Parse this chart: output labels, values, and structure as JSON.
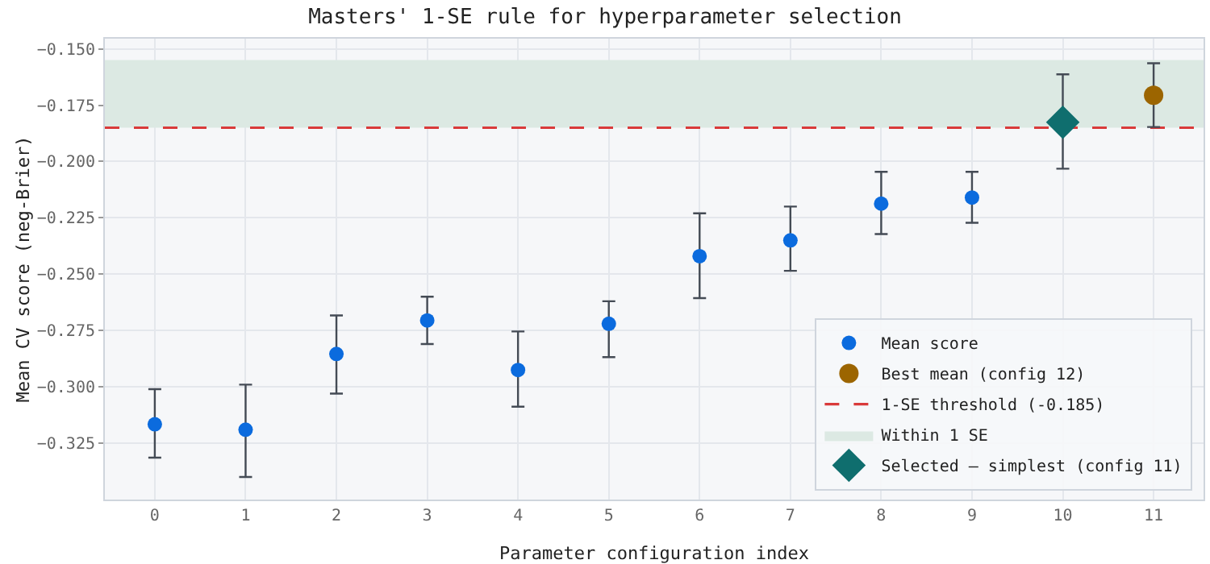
{
  "chart_data": {
    "type": "scatter",
    "title": "Masters' 1-SE rule for hyperparameter selection",
    "xlabel": "Parameter configuration index",
    "ylabel": "Mean CV score (neg-Brier)",
    "xlim": [
      -0.55,
      11.55
    ],
    "xticks": [
      0,
      1,
      2,
      3,
      4,
      5,
      6,
      7,
      8,
      9,
      10,
      11
    ],
    "ylim": [
      -0.35,
      -0.1455
    ],
    "yticks": [
      {
        "value": -0.15,
        "label": "−0.150"
      },
      {
        "value": -0.175,
        "label": "−0.175"
      },
      {
        "value": -0.2,
        "label": "−0.200"
      },
      {
        "value": -0.225,
        "label": "−0.225"
      },
      {
        "value": -0.25,
        "label": "−0.250"
      },
      {
        "value": -0.275,
        "label": "−0.275"
      },
      {
        "value": -0.3,
        "label": "−0.300"
      },
      {
        "value": -0.325,
        "label": "−0.325"
      }
    ],
    "grid": true,
    "legend": "bottom right",
    "series": [
      {
        "name": "Mean score",
        "color": "#0b6bde",
        "marker": "circle",
        "x": [
          0,
          1,
          2,
          3,
          4,
          5,
          6,
          7,
          8,
          9
        ],
        "values": [
          -0.3166,
          -0.319,
          -0.2854,
          -0.2705,
          -0.2925,
          -0.272,
          -0.242,
          -0.235,
          -0.2187,
          -0.216
        ],
        "errors": [
          [
            -0.3314,
            -0.301
          ],
          [
            -0.34,
            -0.299
          ],
          [
            -0.303,
            -0.2683
          ],
          [
            -0.281,
            -0.26
          ],
          [
            -0.3088,
            -0.2754
          ],
          [
            -0.2868,
            -0.262
          ],
          [
            -0.2606,
            -0.223
          ],
          [
            -0.2485,
            -0.22
          ],
          [
            -0.2322,
            -0.2046
          ],
          [
            -0.2272,
            -0.2046
          ]
        ]
      },
      {
        "name": "Best mean (config 12)",
        "color": "#9c6500",
        "marker": "circle",
        "x": [
          11
        ],
        "values": [
          -0.1706
        ],
        "errors": [
          [
            -0.1847,
            -0.1564
          ]
        ]
      },
      {
        "name": "Selected — simplest (config 11)",
        "color": "#0f6e6e",
        "marker": "diamond",
        "x": [
          10
        ],
        "values": [
          -0.1826
        ],
        "errors": [
          [
            -0.2032,
            -0.1613
          ]
        ]
      }
    ],
    "ref_lines": [
      {
        "axis": "y",
        "value": -0.185,
        "label": "1-SE threshold (-0.185)",
        "color": "#d93a3a",
        "line_style": "dashed"
      }
    ],
    "bands": [
      {
        "axis": "y",
        "from": -0.185,
        "to": -0.155,
        "label": "Within 1 SE",
        "color": "#dce9e3"
      }
    ]
  }
}
